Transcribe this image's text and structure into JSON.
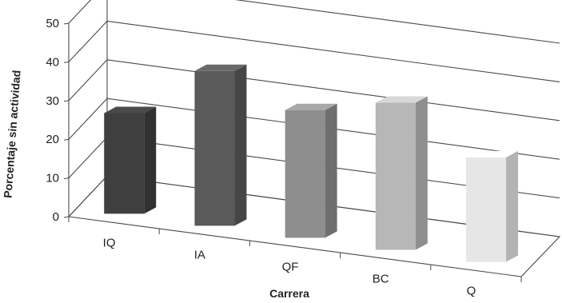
{
  "chart_data": {
    "type": "bar",
    "style": "3d-column",
    "title": "",
    "xlabel": "Carrera",
    "ylabel": "Porcentaje sin actividad",
    "ylim": [
      0,
      50
    ],
    "yticks": [
      "0",
      "10",
      "20",
      "30",
      "40",
      "50"
    ],
    "categories": [
      "IQ",
      "IA",
      "QF",
      "BC",
      "Q"
    ],
    "values": [
      26,
      40,
      33,
      38,
      27
    ],
    "colors": [
      "#3f3f3f",
      "#5a5a5a",
      "#8e8e8e",
      "#b7b7b7",
      "#e6e6e6"
    ],
    "grid": true,
    "legend": "none"
  }
}
